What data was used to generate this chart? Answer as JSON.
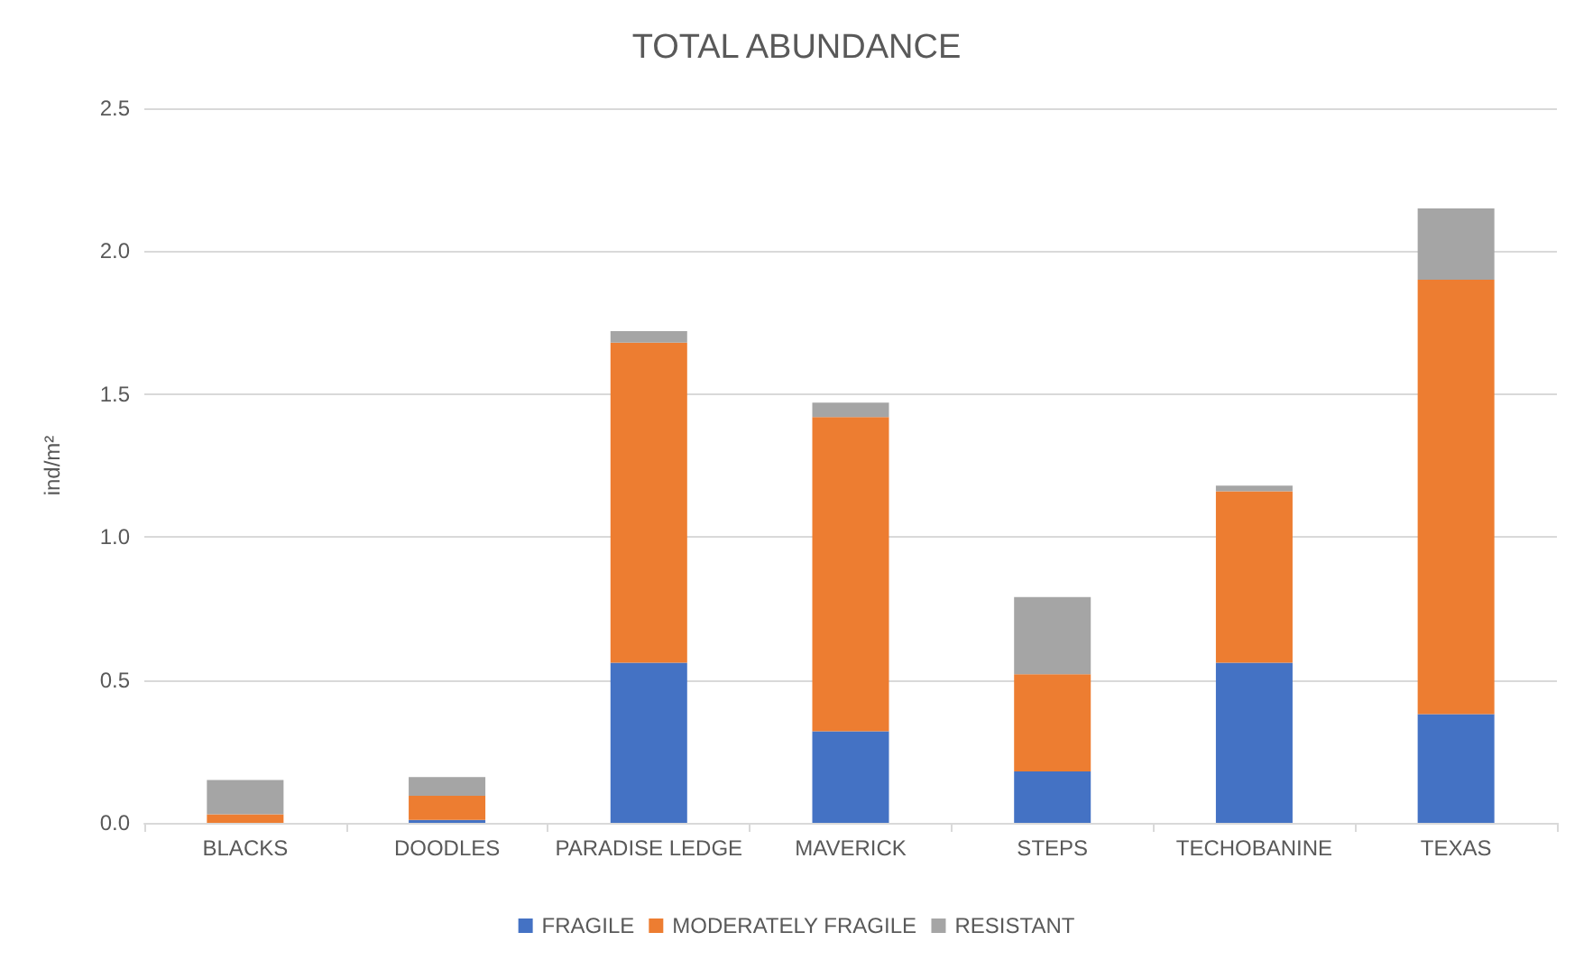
{
  "chart_data": {
    "type": "bar",
    "title": "TOTAL ABUNDANCE",
    "ylabel": "ind/m²",
    "stacked": true,
    "categories": [
      "BLACKS",
      "DOODLES",
      "PARADISE LEDGE",
      "MAVERICK",
      "STEPS",
      "TECHOBANINE",
      "TEXAS"
    ],
    "series": [
      {
        "name": "FRAGILE",
        "color": "#4472c4",
        "values": [
          0,
          0.01,
          0.56,
          0.32,
          0.18,
          0.56,
          0.38
        ]
      },
      {
        "name": "MODERATELY FRAGILE",
        "color": "#ed7d31",
        "values": [
          0.03,
          0.085,
          1.12,
          1.1,
          0.34,
          0.6,
          1.52
        ]
      },
      {
        "name": "RESISTANT",
        "color": "#a5a5a5",
        "values": [
          0.12,
          0.065,
          0.04,
          0.05,
          0.27,
          0.02,
          0.25
        ]
      }
    ],
    "ylim": [
      0,
      2.5
    ],
    "yticks": [
      {
        "value": 0,
        "label": "0.0"
      },
      {
        "value": 0.5,
        "label": "0.5"
      },
      {
        "value": 1,
        "label": "1.0"
      },
      {
        "value": 1.5,
        "label": "1.5"
      },
      {
        "value": 2,
        "label": "2.0"
      },
      {
        "value": 2.5,
        "label": "2.5"
      }
    ],
    "grid": "y",
    "legend": "bottom"
  }
}
